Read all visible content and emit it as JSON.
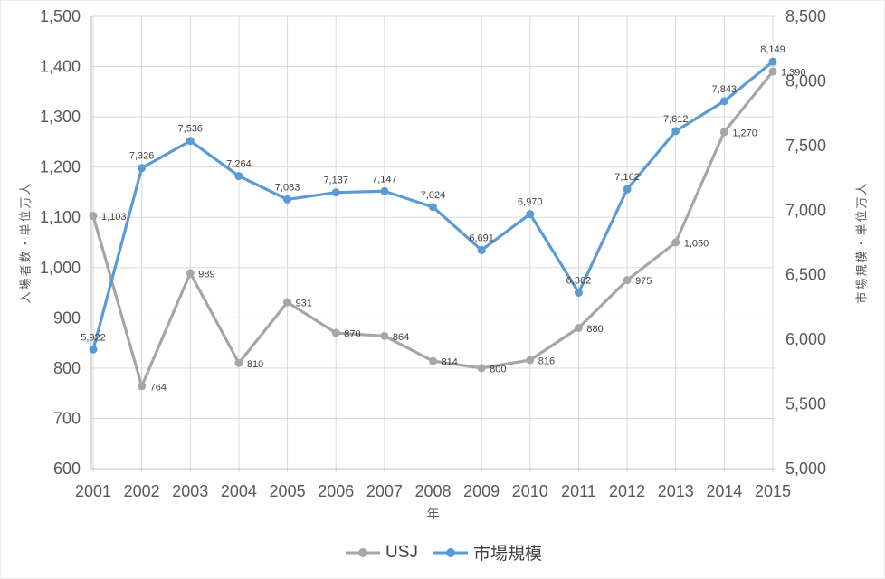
{
  "chart_data": {
    "type": "line",
    "x": [
      "2001",
      "2002",
      "2003",
      "2004",
      "2005",
      "2006",
      "2007",
      "2008",
      "2009",
      "2010",
      "2011",
      "2012",
      "2013",
      "2014",
      "2015"
    ],
    "xlabel": "年",
    "series": [
      {
        "name": "USJ",
        "color": "#a6a6a6",
        "axis": "left",
        "label_position": "right",
        "values": [
          1103,
          764,
          989,
          810,
          931,
          870,
          864,
          814,
          800,
          816,
          880,
          975,
          1050,
          1270,
          1390
        ]
      },
      {
        "name": "市場規模",
        "color": "#5b9bd5",
        "axis": "right",
        "label_position": "above",
        "values": [
          5922,
          7326,
          7536,
          7264,
          7083,
          7137,
          7147,
          7024,
          6691,
          6970,
          6362,
          7162,
          7612,
          7843,
          8149
        ]
      }
    ],
    "left_axis": {
      "title": "入場者数・単位万人",
      "min": 600,
      "max": 1500,
      "step": 100
    },
    "right_axis": {
      "title": "市場規模・単位万人",
      "min": 5000,
      "max": 8500,
      "step": 500
    },
    "grid": true,
    "legend_position": "bottom",
    "colors": {
      "gridline": "#d9d9d9",
      "axis_line": "#bfbfbf",
      "tick_label": "#595959",
      "data_label": "#404040"
    }
  }
}
